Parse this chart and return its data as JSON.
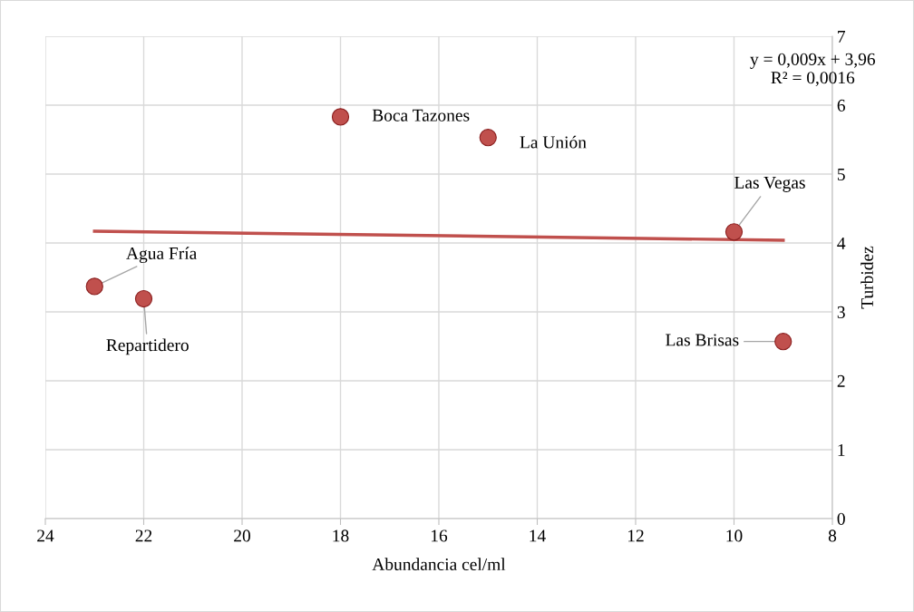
{
  "chart_data": {
    "type": "scatter",
    "xlabel": "Abundancia cel/ml",
    "ylabel": "Turbidez",
    "x": [
      23,
      22,
      18,
      15,
      10,
      9
    ],
    "series": [
      {
        "color": "#c0504d",
        "values": [
          3.37,
          3.19,
          5.83,
          5.53,
          4.16,
          2.57
        ],
        "marker": "circle"
      },
      {
        "type": "line",
        "color": "#c0504d",
        "x": [
          23,
          9
        ],
        "values": [
          4.17,
          4.04
        ],
        "marker": "none",
        "line_style": "solid"
      }
    ],
    "xlim": [
      24,
      8
    ],
    "xticks": [
      24,
      22,
      20,
      18,
      16,
      14,
      12,
      10,
      8
    ],
    "ylim": [
      0,
      7
    ],
    "yticks": [
      0,
      1,
      2,
      3,
      4,
      5,
      6,
      7
    ],
    "grid": true,
    "legend": false,
    "annotations": [
      {
        "text": "Agua Fría",
        "x": 23,
        "y": 3.37
      },
      {
        "text": "Repartidero",
        "x": 22,
        "y": 3.19
      },
      {
        "text": "Boca Tazones",
        "x": 18,
        "y": 5.83
      },
      {
        "text": "La Unión",
        "x": 15,
        "y": 5.53
      },
      {
        "text": "Las Vegas",
        "x": 10,
        "y": 4.16
      },
      {
        "text": "Las Brisas",
        "x": 9,
        "y": 2.57
      },
      "y = 0,009x + 3,96\nR² = 0,0016"
    ]
  }
}
